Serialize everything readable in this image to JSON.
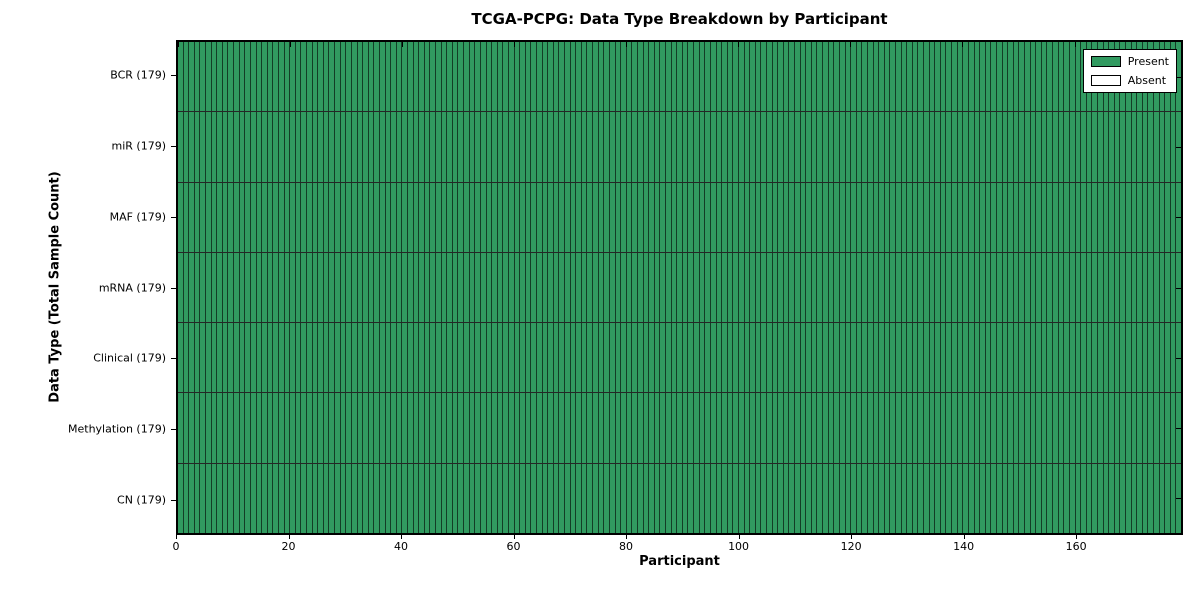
{
  "colors": {
    "present": "#319a60",
    "absent": "#ffffff",
    "axis_border": "#000000",
    "background": "#ffffff"
  },
  "chart_data": {
    "type": "heatmap",
    "title": "TCGA-PCPG: Data Type Breakdown by Participant",
    "xlabel": "Participant",
    "ylabel": "Data Type (Total Sample Count)",
    "n_participants": 179,
    "xlim": [
      0,
      179
    ],
    "x_ticks": [
      0,
      20,
      40,
      60,
      80,
      100,
      120,
      140,
      160
    ],
    "grid": false,
    "rows": [
      {
        "label": "BCR (179)",
        "data_type": "BCR",
        "total_sample_count": 179,
        "present_count": 179,
        "absent_count": 0
      },
      {
        "label": "miR (179)",
        "data_type": "miR",
        "total_sample_count": 179,
        "present_count": 179,
        "absent_count": 0
      },
      {
        "label": "MAF (179)",
        "data_type": "MAF",
        "total_sample_count": 179,
        "present_count": 179,
        "absent_count": 0
      },
      {
        "label": "mRNA (179)",
        "data_type": "mRNA",
        "total_sample_count": 179,
        "present_count": 179,
        "absent_count": 0
      },
      {
        "label": "Clinical (179)",
        "data_type": "Clinical",
        "total_sample_count": 179,
        "present_count": 179,
        "absent_count": 0
      },
      {
        "label": "Methylation (179)",
        "data_type": "Methylation",
        "total_sample_count": 179,
        "present_count": 179,
        "absent_count": 0
      },
      {
        "label": "CN (179)",
        "data_type": "CN",
        "total_sample_count": 179,
        "present_count": 179,
        "absent_count": 0
      }
    ],
    "legend": {
      "position": "upper-right",
      "entries": [
        {
          "label": "Present",
          "color": "#319a60"
        },
        {
          "label": "Absent",
          "color": "#ffffff"
        }
      ]
    }
  }
}
